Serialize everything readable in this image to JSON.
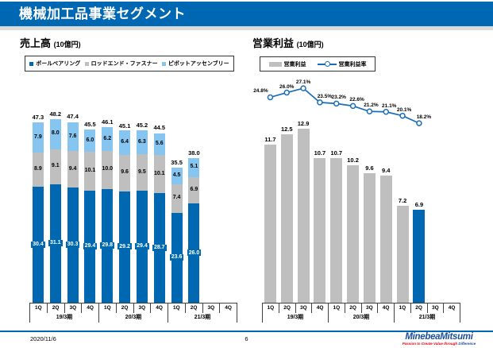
{
  "header": {
    "title": "機械加工品事業セグメント"
  },
  "colors": {
    "header_blue": "#0067B2",
    "dark_blue": "#0068B0",
    "light_blue": "#85C5EF",
    "gray": "#BFBFBF",
    "line_blue": "#1A6EB8",
    "axis": "#404040",
    "logo_blue": "#1A4F9C",
    "logo_red": "#E60012"
  },
  "chart_data": [
    {
      "id": "sales",
      "type": "bar",
      "stacked": true,
      "title": "売上高",
      "unit": "(10億円)",
      "legend_position": "top",
      "categories": [
        "1Q",
        "2Q",
        "3Q",
        "4Q",
        "1Q",
        "2Q",
        "3Q",
        "4Q",
        "1Q",
        "2Q",
        "3Q",
        "4Q"
      ],
      "groups": [
        {
          "label": "19/3期",
          "span": 4
        },
        {
          "label": "20/3期",
          "span": 4
        },
        {
          "label": "21/3期",
          "span": 4
        }
      ],
      "series": [
        {
          "name": "ボールベアリング",
          "color": "#0068B0",
          "values": [
            30.4,
            31.1,
            30.3,
            29.4,
            29.8,
            29.2,
            29.4,
            28.7,
            23.6,
            26.0,
            null,
            null
          ]
        },
        {
          "name": "ロッドエンド・ファスナー",
          "color": "#BFBFBF",
          "values": [
            8.9,
            9.1,
            9.4,
            10.1,
            10.0,
            9.6,
            9.5,
            10.1,
            7.4,
            6.9,
            null,
            null
          ]
        },
        {
          "name": "ピボットアッセンブリー",
          "color": "#85C5EF",
          "values": [
            7.9,
            8.0,
            7.6,
            6.0,
            6.2,
            6.4,
            6.3,
            5.6,
            4.5,
            5.1,
            null,
            null
          ]
        }
      ],
      "totals": [
        47.3,
        48.2,
        47.4,
        45.5,
        46.1,
        45.1,
        45.2,
        44.5,
        35.5,
        38.0,
        null,
        null
      ],
      "ylim": [
        0,
        55
      ]
    },
    {
      "id": "profit",
      "type": "bar+line",
      "title": "営業利益",
      "unit": "(10億円)",
      "legend_position": "top",
      "categories": [
        "1Q",
        "2Q",
        "3Q",
        "4Q",
        "1Q",
        "2Q",
        "3Q",
        "4Q",
        "1Q",
        "2Q",
        "3Q",
        "4Q"
      ],
      "groups": [
        {
          "label": "19/3期",
          "span": 4
        },
        {
          "label": "20/3期",
          "span": 4
        },
        {
          "label": "21/3期",
          "span": 4
        }
      ],
      "bar_series": {
        "name": "営業利益",
        "color": "#BFBFBF",
        "highlight_index": 9,
        "highlight_color": "#0068B0",
        "values": [
          11.7,
          12.5,
          12.9,
          10.7,
          10.7,
          10.2,
          9.6,
          9.4,
          7.2,
          6.9,
          null,
          null
        ]
      },
      "line_series": {
        "name": "営業利益率",
        "color": "#1A6EB8",
        "unit": "%",
        "values": [
          24.8,
          26.0,
          27.1,
          23.5,
          23.2,
          22.6,
          21.2,
          21.1,
          20.1,
          18.2,
          null,
          null
        ]
      },
      "ylim_bars": [
        0,
        14
      ],
      "ylim_line": [
        0,
        30
      ]
    }
  ],
  "footer": {
    "date": "2020/11/6",
    "page": "6",
    "logo_name": "MinebeaMitsumi",
    "tagline_red": "Passion to Create Value through ",
    "tagline_blue": "Difference"
  }
}
